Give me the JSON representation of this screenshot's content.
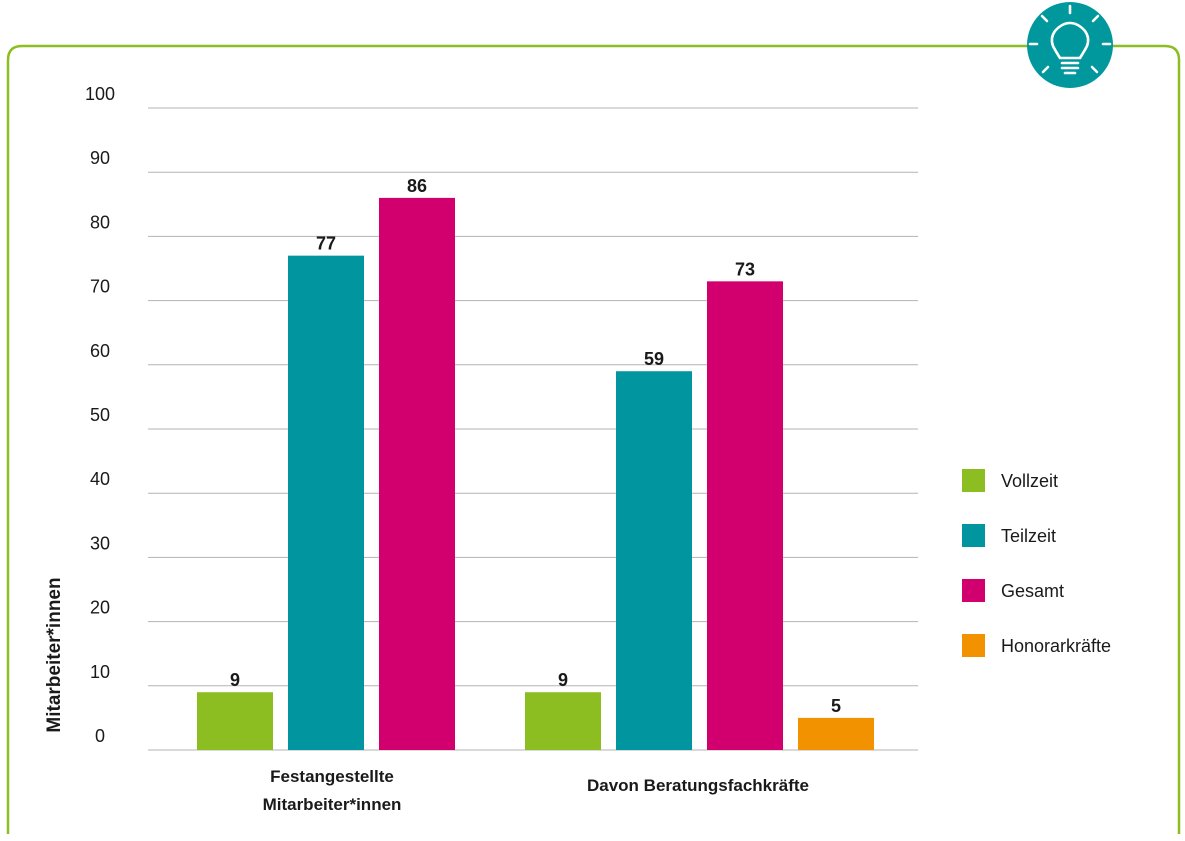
{
  "colors": {
    "frame": "#8cbe22",
    "icon_bg": "#00979d",
    "icon_fg": "#ffffff",
    "grid": "#b3b3b3",
    "text": "#1a1a1a"
  },
  "icon": {
    "name": "lightbulb-icon"
  },
  "chart_data": {
    "type": "bar",
    "title": "",
    "xlabel": "",
    "ylabel": "Mitarbeiter*innen",
    "ylim": [
      0,
      100
    ],
    "yticks": [
      0,
      10,
      20,
      30,
      40,
      50,
      60,
      70,
      80,
      90,
      100
    ],
    "grid": true,
    "legend_position": "right",
    "categories": [
      [
        "Festangestellte",
        "Mitarbeiter*innen"
      ],
      [
        "Davon Beratungsfachkräfte"
      ]
    ],
    "series": [
      {
        "name": "Vollzeit",
        "color": "#8cbe22",
        "values": [
          9,
          9
        ]
      },
      {
        "name": "Teilzeit",
        "color": "#00959f",
        "values": [
          77,
          59
        ]
      },
      {
        "name": "Gesamt",
        "color": "#d2006e",
        "values": [
          86,
          73
        ]
      },
      {
        "name": "Honorarkräfte",
        "color": "#f39200",
        "values": [
          null,
          5
        ]
      }
    ]
  }
}
